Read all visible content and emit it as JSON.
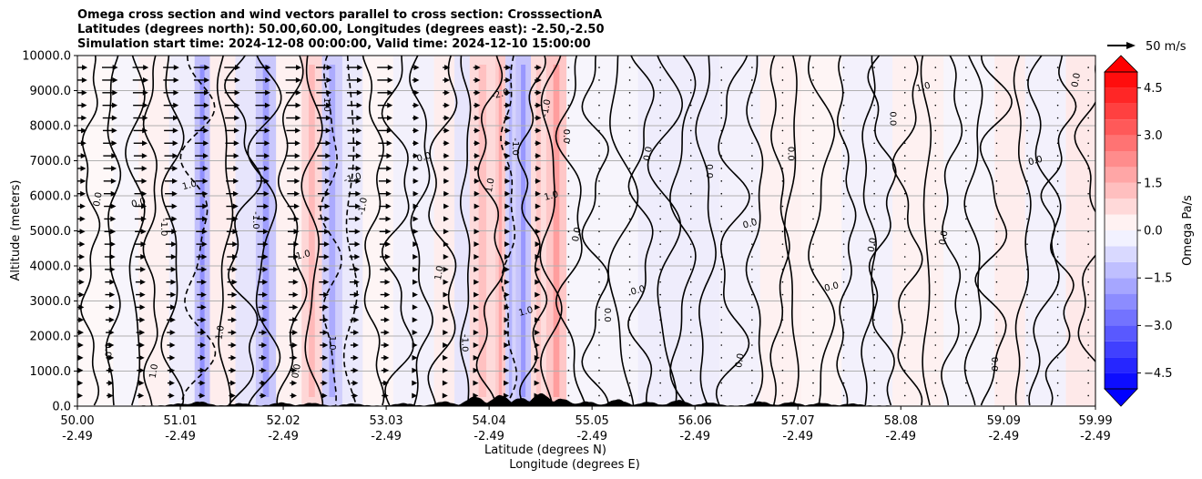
{
  "chart_data": {
    "type": "heatmap",
    "title_lines": [
      "Omega cross section and wind vectors parallel to cross section: CrosssectionA",
      "Latitudes (degrees north): 50.00,60.00, Longitudes (degrees east): -2.50,-2.50",
      "Simulation start time: 2024-12-08 00:00:00, Valid time: 2024-12-10 15:00:00"
    ],
    "xlabel_lat": "Latitude (degrees N)",
    "xlabel_lon": "Longitude (degrees E)",
    "ylabel": "Altitude (meters)",
    "xlim": [
      50.0,
      59.99
    ],
    "ylim": [
      0,
      10000
    ],
    "x_ticks": [
      {
        "lat": "50.00",
        "lon": "-2.49",
        "value": 50.0
      },
      {
        "lat": "51.01",
        "lon": "-2.49",
        "value": 51.01
      },
      {
        "lat": "52.02",
        "lon": "-2.49",
        "value": 52.02
      },
      {
        "lat": "53.03",
        "lon": "-2.49",
        "value": 53.03
      },
      {
        "lat": "54.04",
        "lon": "-2.49",
        "value": 54.04
      },
      {
        "lat": "55.05",
        "lon": "-2.49",
        "value": 55.05
      },
      {
        "lat": "56.06",
        "lon": "-2.49",
        "value": 56.06
      },
      {
        "lat": "57.07",
        "lon": "-2.49",
        "value": 57.07
      },
      {
        "lat": "58.08",
        "lon": "-2.49",
        "value": 58.08
      },
      {
        "lat": "59.09",
        "lon": "-2.49",
        "value": 59.09
      },
      {
        "lat": "59.99",
        "lon": "-2.49",
        "value": 59.99
      }
    ],
    "y_ticks": [
      {
        "label": "0.0",
        "value": 0
      },
      {
        "label": "1000.0",
        "value": 1000
      },
      {
        "label": "2000.0",
        "value": 2000
      },
      {
        "label": "3000.0",
        "value": 3000
      },
      {
        "label": "4000.0",
        "value": 4000
      },
      {
        "label": "5000.0",
        "value": 5000
      },
      {
        "label": "6000.0",
        "value": 6000
      },
      {
        "label": "7000.0",
        "value": 7000
      },
      {
        "label": "8000.0",
        "value": 8000
      },
      {
        "label": "9000.0",
        "value": 9000
      },
      {
        "label": "10000.0",
        "value": 10000
      }
    ],
    "colorbar": {
      "label": "Omega Pa/s",
      "min": -5.0,
      "max": 5.0,
      "extend": "both",
      "ticks": [
        {
          "label": "4.5",
          "value": 4.5
        },
        {
          "label": "3.0",
          "value": 3.0
        },
        {
          "label": "1.5",
          "value": 1.5
        },
        {
          "label": "0.0",
          "value": 0.0
        },
        {
          "label": "−1.5",
          "value": -1.5
        },
        {
          "label": "−3.0",
          "value": -3.0
        },
        {
          "label": "−4.5",
          "value": -4.5
        }
      ],
      "colormap": "bwr"
    },
    "vector_key": {
      "label": "50 m/s",
      "speed": 50
    },
    "omega_bands": [
      {
        "lat": 50.0,
        "omega": 0.1
      },
      {
        "lat": 50.35,
        "omega": -0.2
      },
      {
        "lat": 50.6,
        "omega": 0.3
      },
      {
        "lat": 50.9,
        "omega": -0.4
      },
      {
        "lat": 51.15,
        "omega": -1.6
      },
      {
        "lat": 51.3,
        "omega": 0.4
      },
      {
        "lat": 51.55,
        "omega": -0.6
      },
      {
        "lat": 51.75,
        "omega": -1.4
      },
      {
        "lat": 51.95,
        "omega": 0.3
      },
      {
        "lat": 52.2,
        "omega": 1.0
      },
      {
        "lat": 52.4,
        "omega": -1.2
      },
      {
        "lat": 52.6,
        "omega": -0.5
      },
      {
        "lat": 52.8,
        "omega": 0.2
      },
      {
        "lat": 53.1,
        "omega": -0.3
      },
      {
        "lat": 53.5,
        "omega": 0.4
      },
      {
        "lat": 53.7,
        "omega": -0.6
      },
      {
        "lat": 53.85,
        "omega": 0.9
      },
      {
        "lat": 54.1,
        "omega": 1.3
      },
      {
        "lat": 54.2,
        "omega": -1.1
      },
      {
        "lat": 54.3,
        "omega": -1.5
      },
      {
        "lat": 54.45,
        "omega": 0.8
      },
      {
        "lat": 54.6,
        "omega": 1.4
      },
      {
        "lat": 54.8,
        "omega": -0.2
      },
      {
        "lat": 55.5,
        "omega": -0.4
      },
      {
        "lat": 56.3,
        "omega": -0.3
      },
      {
        "lat": 56.7,
        "omega": 0.3
      },
      {
        "lat": 57.1,
        "omega": 0.2
      },
      {
        "lat": 57.5,
        "omega": -0.3
      },
      {
        "lat": 58.0,
        "omega": 0.3
      },
      {
        "lat": 58.5,
        "omega": -0.2
      },
      {
        "lat": 59.0,
        "omega": 0.4
      },
      {
        "lat": 59.3,
        "omega": -0.3
      },
      {
        "lat": 59.7,
        "omega": 0.5
      }
    ],
    "contour_labels": [
      {
        "lat": 50.2,
        "alt": 5900,
        "text": "0.0"
      },
      {
        "lat": 50.3,
        "alt": 1600,
        "text": "0.0"
      },
      {
        "lat": 50.6,
        "alt": 5800,
        "text": "0.0"
      },
      {
        "lat": 50.75,
        "alt": 1000,
        "text": "1.0"
      },
      {
        "lat": 50.85,
        "alt": 5100,
        "text": "-1.0"
      },
      {
        "lat": 51.1,
        "alt": 6300,
        "text": "1.0"
      },
      {
        "lat": 51.4,
        "alt": 2100,
        "text": "1.0"
      },
      {
        "lat": 51.75,
        "alt": 5300,
        "text": "-1.0"
      },
      {
        "lat": 52.2,
        "alt": 4300,
        "text": "-1.0"
      },
      {
        "lat": 52.15,
        "alt": 1000,
        "text": "0.0"
      },
      {
        "lat": 52.45,
        "alt": 8600,
        "text": "1.0"
      },
      {
        "lat": 52.7,
        "alt": 6500,
        "text": "-1.0"
      },
      {
        "lat": 52.8,
        "alt": 5700,
        "text": "-1.0"
      },
      {
        "lat": 52.5,
        "alt": 1800,
        "text": "1.0"
      },
      {
        "lat": 53.4,
        "alt": 7100,
        "text": "0.0"
      },
      {
        "lat": 53.55,
        "alt": 3800,
        "text": "1.0"
      },
      {
        "lat": 53.8,
        "alt": 1800,
        "text": "-1.0"
      },
      {
        "lat": 54.15,
        "alt": 8900,
        "text": "-2.0"
      },
      {
        "lat": 54.05,
        "alt": 6300,
        "text": "1.0"
      },
      {
        "lat": 54.3,
        "alt": 7400,
        "text": "-1.0"
      },
      {
        "lat": 54.4,
        "alt": 2700,
        "text": "1.0"
      },
      {
        "lat": 54.6,
        "alt": 8500,
        "text": "-1.0"
      },
      {
        "lat": 54.8,
        "alt": 7700,
        "text": "0.0"
      },
      {
        "lat": 54.65,
        "alt": 6000,
        "text": "1.0"
      },
      {
        "lat": 54.9,
        "alt": 4900,
        "text": "0.0"
      },
      {
        "lat": 55.2,
        "alt": 2600,
        "text": "0.0"
      },
      {
        "lat": 55.5,
        "alt": 3300,
        "text": "0.0"
      },
      {
        "lat": 55.6,
        "alt": 7200,
        "text": "0.0"
      },
      {
        "lat": 56.2,
        "alt": 6700,
        "text": "0.0"
      },
      {
        "lat": 56.6,
        "alt": 5200,
        "text": "0.0"
      },
      {
        "lat": 56.5,
        "alt": 1300,
        "text": "0.0"
      },
      {
        "lat": 57.0,
        "alt": 7200,
        "text": "0.0"
      },
      {
        "lat": 57.4,
        "alt": 3400,
        "text": "0.0"
      },
      {
        "lat": 57.8,
        "alt": 4600,
        "text": "0.0"
      },
      {
        "lat": 58.0,
        "alt": 8200,
        "text": "0.0"
      },
      {
        "lat": 58.3,
        "alt": 9100,
        "text": "1.0"
      },
      {
        "lat": 58.5,
        "alt": 4800,
        "text": "0.0"
      },
      {
        "lat": 59.0,
        "alt": 1200,
        "text": "0.0"
      },
      {
        "lat": 59.4,
        "alt": 7000,
        "text": "0.0"
      },
      {
        "lat": 59.8,
        "alt": 9300,
        "text": "0.0"
      }
    ]
  }
}
